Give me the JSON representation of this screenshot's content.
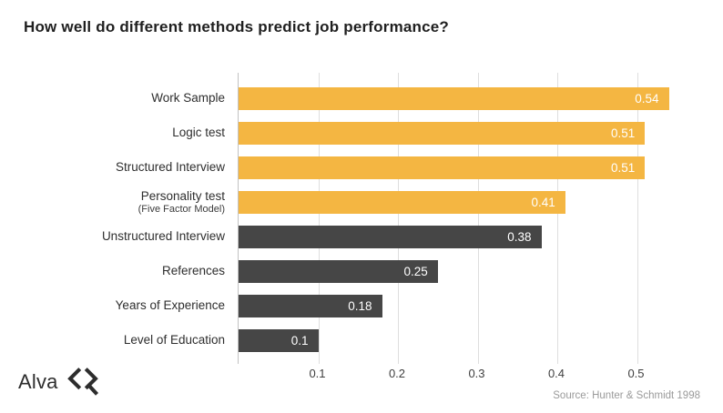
{
  "title": "How well do different methods predict job performance?",
  "chart_data": {
    "type": "bar",
    "orientation": "horizontal",
    "title": "How well do different methods predict job performance?",
    "categories": [
      "Work Sample",
      "Logic test",
      "Structured Interview",
      "Personality test",
      "Unstructured Interview",
      "References",
      "Years of Experience",
      "Level of Education"
    ],
    "sublabels": [
      "",
      "",
      "",
      "(Five Factor Model)",
      "",
      "",
      "",
      ""
    ],
    "values": [
      0.54,
      0.51,
      0.51,
      0.41,
      0.38,
      0.25,
      0.18,
      0.1
    ],
    "value_labels": [
      "0.54",
      "0.51",
      "0.51",
      "0.41",
      "0.38",
      "0.25",
      "0.18",
      "0.1"
    ],
    "bar_colors": [
      "#F4B642",
      "#F4B642",
      "#F4B642",
      "#F4B642",
      "#464646",
      "#464646",
      "#464646",
      "#464646"
    ],
    "x_ticks": [
      "0.1",
      "0.2",
      "0.3",
      "0.4",
      "0.5"
    ],
    "x_tick_values": [
      0.1,
      0.2,
      0.3,
      0.4,
      0.5
    ],
    "xlim": [
      0,
      0.6
    ],
    "grid": true,
    "legend": "none",
    "value_label_position": "inside-end"
  },
  "footer": {
    "logo_text": "Alva",
    "source": "Source: Hunter & Schmidt 1998"
  },
  "colors": {
    "accent_yellow": "#F4B642",
    "bar_dark": "#464646",
    "gridline": "#DEDEDE",
    "axis_line": "#C2C2C2",
    "title_text": "#1F1F1F",
    "label_text": "#2E2E2E",
    "tick_text": "#3F3F3F",
    "value_text": "#FFFFFF",
    "source_text": "#9A9A9A",
    "background": "#FFFFFF"
  }
}
